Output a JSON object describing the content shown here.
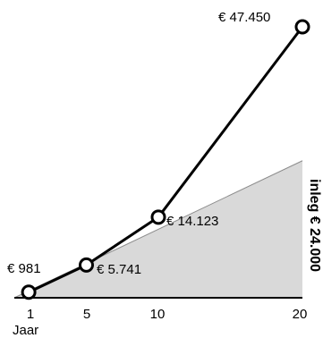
{
  "chart_data": {
    "type": "line",
    "x": [
      1,
      5,
      10,
      20
    ],
    "x_ticks": [
      "1",
      "5",
      "10",
      "20"
    ],
    "xlabel": "Jaar",
    "xlim": [
      0,
      20
    ],
    "ylim": [
      0,
      47450
    ],
    "grid": false,
    "series": [
      {
        "values": [
          981,
          5741,
          14123,
          47450
        ],
        "labels": [
          "€ 981",
          "€ 5.741",
          "€ 14.123",
          "€ 47.450"
        ]
      }
    ],
    "inleg": {
      "label": "inleg € 24.000",
      "x": [
        0,
        20
      ],
      "values": [
        0,
        24000
      ]
    },
    "colors": {
      "line": "#000000",
      "marker_fill": "#ffffff",
      "area": "#d9d9d9",
      "area_edge": "#8c8c8c"
    }
  }
}
